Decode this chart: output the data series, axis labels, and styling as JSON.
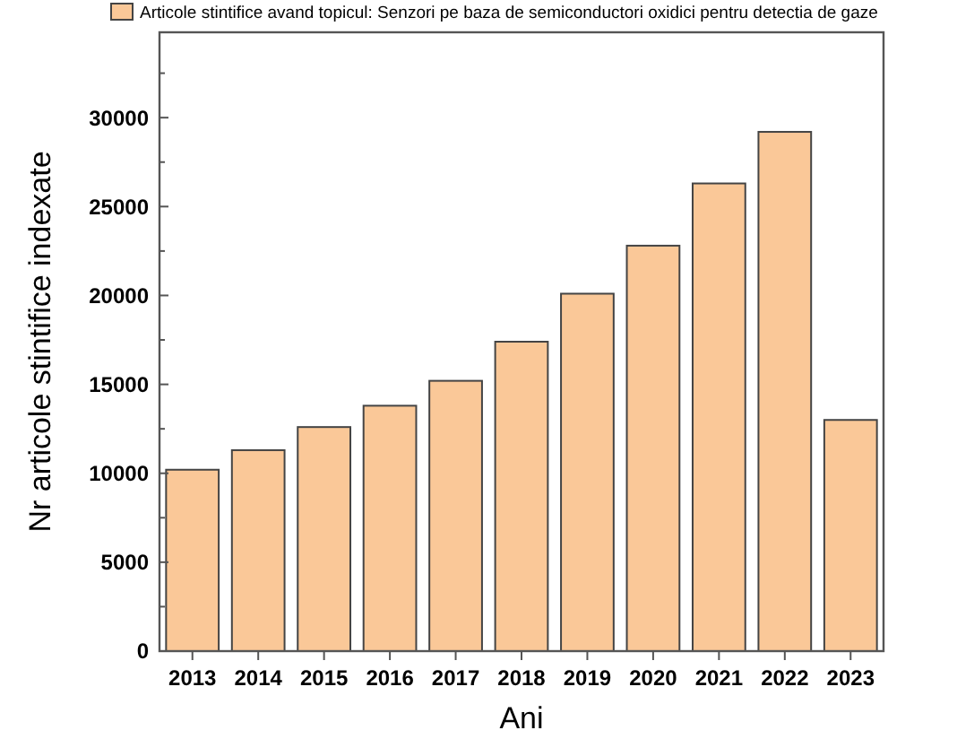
{
  "chart_data": {
    "type": "bar",
    "xlabel": "Ani",
    "ylabel": "Nr articole stintifice indexate",
    "categories": [
      "2013",
      "2014",
      "2015",
      "2016",
      "2017",
      "2018",
      "2019",
      "2020",
      "2021",
      "2022",
      "2023"
    ],
    "series": [
      {
        "name": "Articole stintifice avand topicul: Senzori pe baza de semiconductori oxidici pentru detectia de gaze",
        "color": "#fac898",
        "values": [
          10200,
          11300,
          12600,
          13800,
          15200,
          17400,
          20100,
          22800,
          26300,
          29200,
          13000
        ]
      }
    ],
    "ylim": [
      0,
      34800
    ],
    "yticks": [
      0,
      {
        "value": 2500,
        "label": null
      },
      5000,
      {
        "value": 7500,
        "label": null
      },
      10000,
      {
        "value": 12500,
        "label": null
      },
      15000,
      {
        "value": 17500,
        "label": null
      },
      20000,
      {
        "value": 22500,
        "label": null
      },
      25000,
      {
        "value": 27500,
        "label": null
      },
      30000,
      {
        "value": 32500,
        "label": null
      }
    ],
    "grid": false,
    "legend": "top"
  }
}
